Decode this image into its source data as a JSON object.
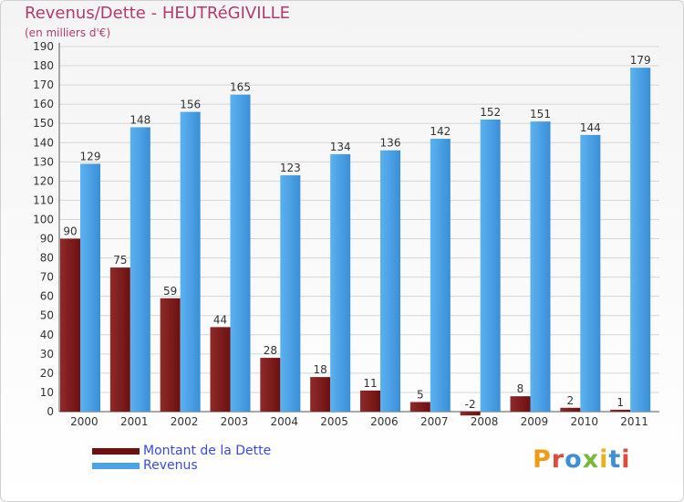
{
  "colors": {
    "dette": "#6e1010",
    "revenus": "#4aa3e8",
    "title": "#b23b6e",
    "legend_text": "#3a4bd8"
  },
  "logo": {
    "text": "Proxiti",
    "colors": [
      "#f09a1a",
      "#e04a3a",
      "#3f8fd6",
      "#7ab83a",
      "#e8b21a",
      "#3f8fd6",
      "#e04a3a"
    ]
  },
  "chart_data": {
    "type": "bar",
    "title": "Revenus/Dette - HEUTRéGIVILLE",
    "subtitle": "(en milliers d'€)",
    "categories": [
      "2000",
      "2001",
      "2002",
      "2003",
      "2004",
      "2005",
      "2006",
      "2007",
      "2008",
      "2009",
      "2010",
      "2011"
    ],
    "series": [
      {
        "name": "Montant de la Dette",
        "values": [
          90,
          75,
          59,
          44,
          28,
          18,
          11,
          5,
          -2,
          8,
          2,
          1
        ]
      },
      {
        "name": "Revenus",
        "values": [
          129,
          148,
          156,
          165,
          123,
          134,
          136,
          142,
          152,
          151,
          144,
          179
        ]
      }
    ],
    "ylim": [
      0,
      190
    ],
    "ytick_step": 10,
    "grid": true,
    "legend_position": "bottom-left"
  }
}
